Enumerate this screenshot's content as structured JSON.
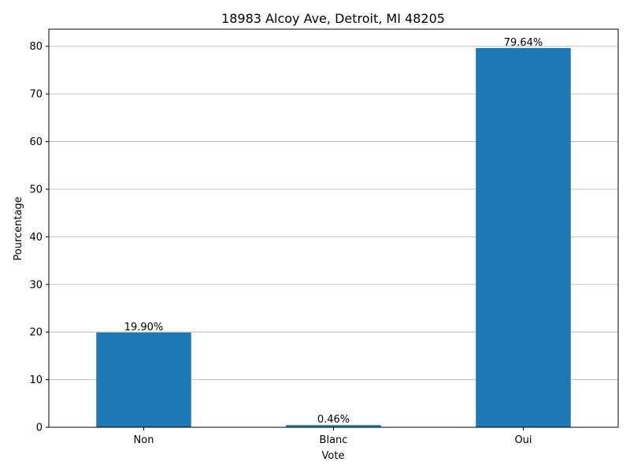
{
  "chart_data": {
    "type": "bar",
    "title": "18983 Alcoy Ave, Detroit, MI 48205",
    "xlabel": "Vote",
    "ylabel": "Pourcentage",
    "categories": [
      "Non",
      "Blanc",
      "Oui"
    ],
    "values": [
      19.9,
      0.46,
      79.64
    ],
    "data_labels": [
      "19.90%",
      "0.46%",
      "79.64%"
    ],
    "yticks": [
      0,
      10,
      20,
      30,
      40,
      50,
      60,
      70,
      80
    ],
    "ylim": [
      0,
      83.6
    ],
    "grid": "horizontal",
    "bar_color": "#1f77b4",
    "grid_color": "#b0b0b0"
  }
}
